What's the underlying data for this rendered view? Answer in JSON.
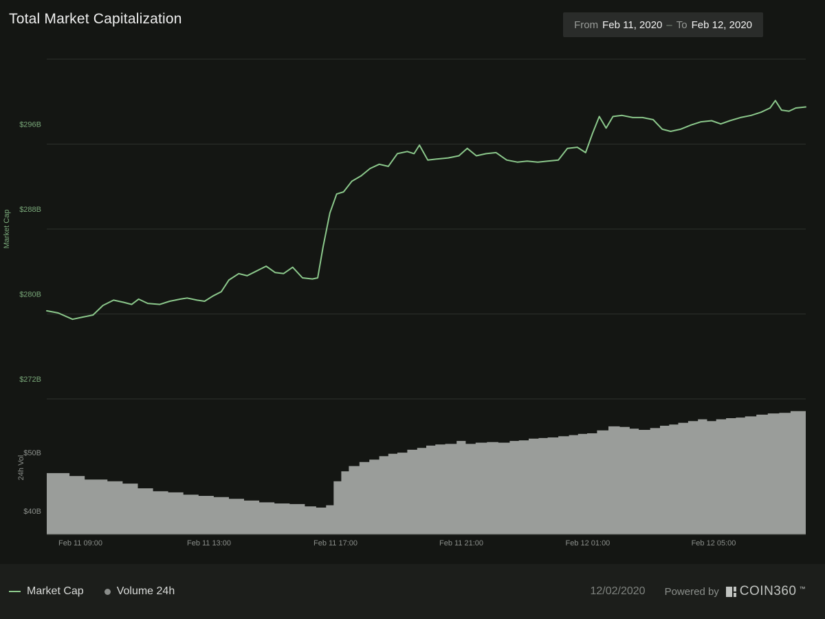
{
  "header": {
    "title": "Total Market Capitalization",
    "date_range": {
      "from_label": "From",
      "from_value": "Feb 11, 2020",
      "separator": "–",
      "to_label": "To",
      "to_value": "Feb 12, 2020"
    }
  },
  "colors": {
    "background": "#141613",
    "footer_background": "#1c1e1b",
    "datebox_background": "#2a2c2a",
    "line": "#8cc98c",
    "volume_fill": "#9a9d9a",
    "grid": "#2e312d",
    "axis_line": "#4e514e",
    "y_label_green": "#79a879",
    "label_gray": "#8c908c"
  },
  "chart_data": {
    "type": "line+area",
    "title": "Total Market Capitalization",
    "legend_position": "bottom",
    "grid": true,
    "x_axis": {
      "ticks": [
        {
          "pos": 0.0444,
          "label": "Feb 11 09:00"
        },
        {
          "pos": 0.2138,
          "label": "Feb 11 13:00"
        },
        {
          "pos": 0.3804,
          "label": "Feb 11 17:00"
        },
        {
          "pos": 0.5462,
          "label": "Feb 11 21:00"
        },
        {
          "pos": 0.7128,
          "label": "Feb 12 01:00"
        },
        {
          "pos": 0.8786,
          "label": "Feb 12 05:00"
        }
      ]
    },
    "market_cap": {
      "type": "line",
      "name": "Market Cap",
      "axis_title": "Market Cap",
      "unit": "$B",
      "ylim": [
        272,
        304
      ],
      "gridline_values": [
        304,
        296,
        288,
        280,
        272
      ],
      "y_ticks": [
        {
          "value": 296,
          "label": "$296B"
        },
        {
          "value": 288,
          "label": "$288B"
        },
        {
          "value": 280,
          "label": "$280B"
        },
        {
          "value": 272,
          "label": "$272B"
        }
      ],
      "points": [
        [
          0.0,
          280.3
        ],
        [
          0.015,
          280.1
        ],
        [
          0.034,
          279.5
        ],
        [
          0.047,
          279.7
        ],
        [
          0.061,
          279.9
        ],
        [
          0.074,
          280.8
        ],
        [
          0.088,
          281.3
        ],
        [
          0.101,
          281.1
        ],
        [
          0.112,
          280.9
        ],
        [
          0.121,
          281.4
        ],
        [
          0.133,
          281.0
        ],
        [
          0.149,
          280.9
        ],
        [
          0.162,
          281.2
        ],
        [
          0.176,
          281.4
        ],
        [
          0.185,
          281.5
        ],
        [
          0.198,
          281.3
        ],
        [
          0.208,
          281.2
        ],
        [
          0.219,
          281.7
        ],
        [
          0.23,
          282.1
        ],
        [
          0.24,
          283.2
        ],
        [
          0.253,
          283.8
        ],
        [
          0.264,
          283.6
        ],
        [
          0.275,
          284.0
        ],
        [
          0.289,
          284.5
        ],
        [
          0.301,
          283.9
        ],
        [
          0.312,
          283.8
        ],
        [
          0.324,
          284.4
        ],
        [
          0.337,
          283.4
        ],
        [
          0.35,
          283.3
        ],
        [
          0.357,
          283.4
        ],
        [
          0.364,
          286.3
        ],
        [
          0.373,
          289.5
        ],
        [
          0.382,
          291.3
        ],
        [
          0.391,
          291.5
        ],
        [
          0.402,
          292.5
        ],
        [
          0.414,
          293.0
        ],
        [
          0.426,
          293.7
        ],
        [
          0.438,
          294.1
        ],
        [
          0.45,
          293.9
        ],
        [
          0.462,
          295.1
        ],
        [
          0.475,
          295.3
        ],
        [
          0.484,
          295.1
        ],
        [
          0.491,
          295.9
        ],
        [
          0.502,
          294.5
        ],
        [
          0.515,
          294.6
        ],
        [
          0.529,
          294.7
        ],
        [
          0.543,
          294.9
        ],
        [
          0.554,
          295.6
        ],
        [
          0.566,
          294.9
        ],
        [
          0.579,
          295.1
        ],
        [
          0.592,
          295.2
        ],
        [
          0.606,
          294.5
        ],
        [
          0.62,
          294.3
        ],
        [
          0.633,
          294.4
        ],
        [
          0.647,
          294.3
        ],
        [
          0.66,
          294.4
        ],
        [
          0.674,
          294.5
        ],
        [
          0.686,
          295.6
        ],
        [
          0.699,
          295.7
        ],
        [
          0.71,
          295.2
        ],
        [
          0.719,
          297.0
        ],
        [
          0.728,
          298.6
        ],
        [
          0.737,
          297.5
        ],
        [
          0.746,
          298.6
        ],
        [
          0.758,
          298.7
        ],
        [
          0.772,
          298.5
        ],
        [
          0.785,
          298.5
        ],
        [
          0.799,
          298.3
        ],
        [
          0.811,
          297.4
        ],
        [
          0.822,
          297.2
        ],
        [
          0.835,
          297.4
        ],
        [
          0.849,
          297.8
        ],
        [
          0.862,
          298.1
        ],
        [
          0.876,
          298.2
        ],
        [
          0.888,
          297.9
        ],
        [
          0.9,
          298.2
        ],
        [
          0.914,
          298.5
        ],
        [
          0.928,
          298.7
        ],
        [
          0.941,
          299.0
        ],
        [
          0.953,
          299.4
        ],
        [
          0.96,
          300.1
        ],
        [
          0.968,
          299.2
        ],
        [
          0.978,
          299.1
        ],
        [
          0.987,
          299.4
        ],
        [
          1.0,
          299.5
        ]
      ]
    },
    "volume": {
      "type": "area",
      "name": "Volume 24h",
      "axis_title": "24h Vol",
      "unit": "$B",
      "ylim": [
        39.4,
        62.5
      ],
      "y_ticks": [
        {
          "value": 50,
          "label": "$50B"
        },
        {
          "value": 40,
          "label": "$40B"
        }
      ],
      "points": [
        [
          0.0,
          49.9
        ],
        [
          0.03,
          49.4
        ],
        [
          0.05,
          48.8
        ],
        [
          0.08,
          48.5
        ],
        [
          0.1,
          48.1
        ],
        [
          0.12,
          47.3
        ],
        [
          0.14,
          46.8
        ],
        [
          0.16,
          46.6
        ],
        [
          0.18,
          46.2
        ],
        [
          0.2,
          46.0
        ],
        [
          0.22,
          45.8
        ],
        [
          0.24,
          45.5
        ],
        [
          0.26,
          45.2
        ],
        [
          0.28,
          44.9
        ],
        [
          0.3,
          44.7
        ],
        [
          0.32,
          44.6
        ],
        [
          0.34,
          44.2
        ],
        [
          0.355,
          44.0
        ],
        [
          0.368,
          44.4
        ],
        [
          0.378,
          48.5
        ],
        [
          0.388,
          50.2
        ],
        [
          0.398,
          51.1
        ],
        [
          0.412,
          51.8
        ],
        [
          0.425,
          52.2
        ],
        [
          0.438,
          52.8
        ],
        [
          0.45,
          53.2
        ],
        [
          0.462,
          53.4
        ],
        [
          0.475,
          53.9
        ],
        [
          0.488,
          54.2
        ],
        [
          0.5,
          54.6
        ],
        [
          0.512,
          54.8
        ],
        [
          0.525,
          54.9
        ],
        [
          0.54,
          55.4
        ],
        [
          0.552,
          54.9
        ],
        [
          0.565,
          55.1
        ],
        [
          0.58,
          55.2
        ],
        [
          0.595,
          55.1
        ],
        [
          0.61,
          55.4
        ],
        [
          0.622,
          55.5
        ],
        [
          0.635,
          55.8
        ],
        [
          0.648,
          55.9
        ],
        [
          0.66,
          56.0
        ],
        [
          0.674,
          56.2
        ],
        [
          0.688,
          56.4
        ],
        [
          0.7,
          56.6
        ],
        [
          0.712,
          56.7
        ],
        [
          0.725,
          57.2
        ],
        [
          0.74,
          57.9
        ],
        [
          0.755,
          57.8
        ],
        [
          0.768,
          57.5
        ],
        [
          0.78,
          57.3
        ],
        [
          0.795,
          57.6
        ],
        [
          0.808,
          58.0
        ],
        [
          0.82,
          58.2
        ],
        [
          0.832,
          58.5
        ],
        [
          0.845,
          58.8
        ],
        [
          0.858,
          59.1
        ],
        [
          0.87,
          58.8
        ],
        [
          0.882,
          59.1
        ],
        [
          0.895,
          59.3
        ],
        [
          0.908,
          59.4
        ],
        [
          0.92,
          59.6
        ],
        [
          0.935,
          59.9
        ],
        [
          0.95,
          60.1
        ],
        [
          0.965,
          60.2
        ],
        [
          0.98,
          60.5
        ],
        [
          1.0,
          60.6
        ]
      ]
    }
  },
  "footer": {
    "legend": [
      {
        "label": "Market Cap",
        "marker": "line-marker-icon"
      },
      {
        "label": "Volume 24h",
        "marker": "dot-marker-icon"
      }
    ],
    "date": "12/02/2020",
    "powered_by": "Powered by",
    "brand": "COIN360",
    "brand_tm": "™"
  }
}
